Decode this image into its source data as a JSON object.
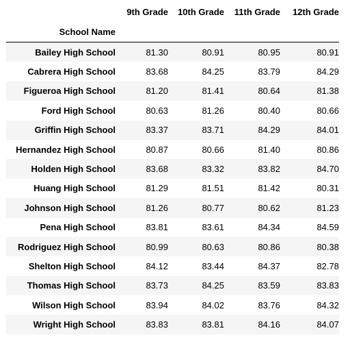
{
  "table": {
    "index_name": "School Name",
    "columns": [
      "9th Grade",
      "10th Grade",
      "11th Grade",
      "12th Grade"
    ],
    "rows": [
      {
        "school": "Bailey High School",
        "values": [
          "81.30",
          "80.91",
          "80.95",
          "80.91"
        ]
      },
      {
        "school": "Cabrera High School",
        "values": [
          "83.68",
          "84.25",
          "83.79",
          "84.29"
        ]
      },
      {
        "school": "Figueroa High School",
        "values": [
          "81.20",
          "81.41",
          "80.64",
          "81.38"
        ]
      },
      {
        "school": "Ford High School",
        "values": [
          "80.63",
          "81.26",
          "80.40",
          "80.66"
        ]
      },
      {
        "school": "Griffin High School",
        "values": [
          "83.37",
          "83.71",
          "84.29",
          "84.01"
        ]
      },
      {
        "school": "Hernandez High School",
        "values": [
          "80.87",
          "80.66",
          "81.40",
          "80.86"
        ]
      },
      {
        "school": "Holden High School",
        "values": [
          "83.68",
          "83.32",
          "83.82",
          "84.70"
        ]
      },
      {
        "school": "Huang High School",
        "values": [
          "81.29",
          "81.51",
          "81.42",
          "80.31"
        ]
      },
      {
        "school": "Johnson High School",
        "values": [
          "81.26",
          "80.77",
          "80.62",
          "81.23"
        ]
      },
      {
        "school": "Pena High School",
        "values": [
          "83.81",
          "83.61",
          "84.34",
          "84.59"
        ]
      },
      {
        "school": "Rodriguez High School",
        "values": [
          "80.99",
          "80.63",
          "80.86",
          "80.38"
        ]
      },
      {
        "school": "Shelton High School",
        "values": [
          "84.12",
          "83.44",
          "84.37",
          "82.78"
        ]
      },
      {
        "school": "Thomas High School",
        "values": [
          "83.73",
          "84.25",
          "83.59",
          "83.83"
        ]
      },
      {
        "school": "Wilson High School",
        "values": [
          "83.94",
          "84.02",
          "83.76",
          "84.32"
        ]
      },
      {
        "school": "Wright High School",
        "values": [
          "83.83",
          "83.81",
          "84.16",
          "84.07"
        ]
      }
    ]
  }
}
